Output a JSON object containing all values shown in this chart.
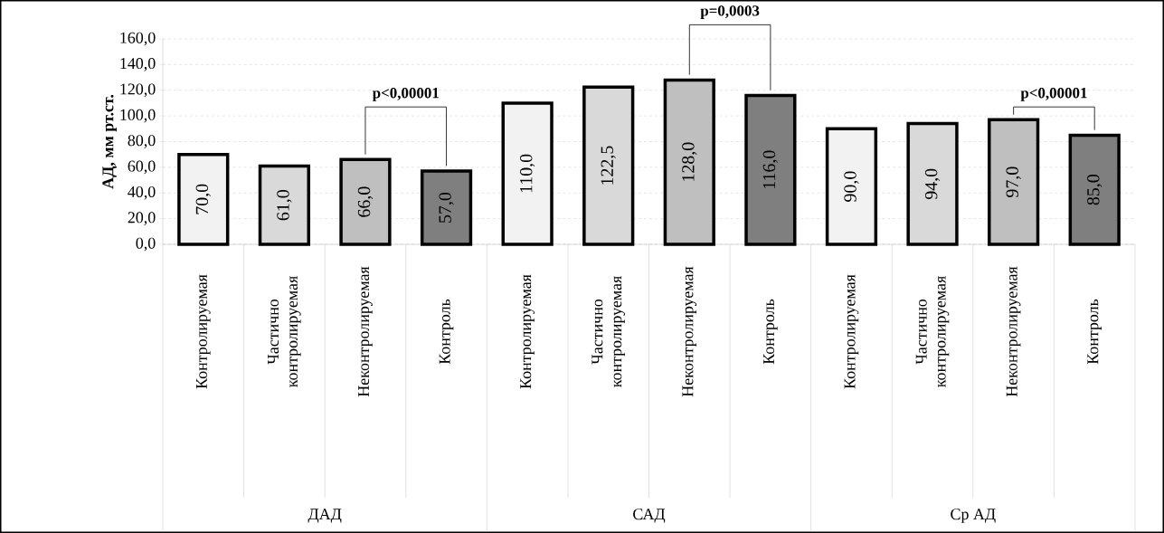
{
  "chart_data": {
    "type": "bar",
    "ylabel": "АД, мм рт.ст.",
    "categories": [
      "Контролируемая",
      "Частично контролируемая",
      "Неконтролируемая",
      "Контроль",
      "Контролируемая",
      "Частично контролируемая",
      "Неконтролируемая",
      "Контроль",
      "Контролируемая",
      "Частично контролируемая",
      "Неконтролируемая",
      "Контроль"
    ],
    "values": [
      70,
      61,
      66,
      57,
      110,
      122.5,
      128,
      116,
      90,
      94,
      97,
      85
    ],
    "value_labels": [
      "70,0",
      "61,0",
      "66,0",
      "57,0",
      "110,0",
      "122,5",
      "128,0",
      "116,0",
      "90,0",
      "94,0",
      "97,0",
      "85,0"
    ],
    "colors": [
      "#f2f2f2",
      "#d9d9d9",
      "#bfbfbf",
      "#7f7f7f",
      "#f2f2f2",
      "#d9d9d9",
      "#bfbfbf",
      "#7f7f7f",
      "#f2f2f2",
      "#d9d9d9",
      "#bfbfbf",
      "#7f7f7f"
    ],
    "ylim": [
      0,
      160
    ],
    "yticks": [
      {
        "value": 0,
        "label": "0,0"
      },
      {
        "value": 20,
        "label": "20,0"
      },
      {
        "value": 40,
        "label": "40,0"
      },
      {
        "value": 60,
        "label": "60,0"
      },
      {
        "value": 80,
        "label": "80,0"
      },
      {
        "value": 100,
        "label": "100,0"
      },
      {
        "value": 120,
        "label": "120,0"
      },
      {
        "value": 140,
        "label": "140,0"
      },
      {
        "value": 160,
        "label": "160,0"
      }
    ],
    "grid": "y",
    "annotations": [
      "ДАД",
      "САД",
      "Ср АД",
      "p<0,00001",
      "p=0,0003",
      "p<0,00001"
    ]
  }
}
